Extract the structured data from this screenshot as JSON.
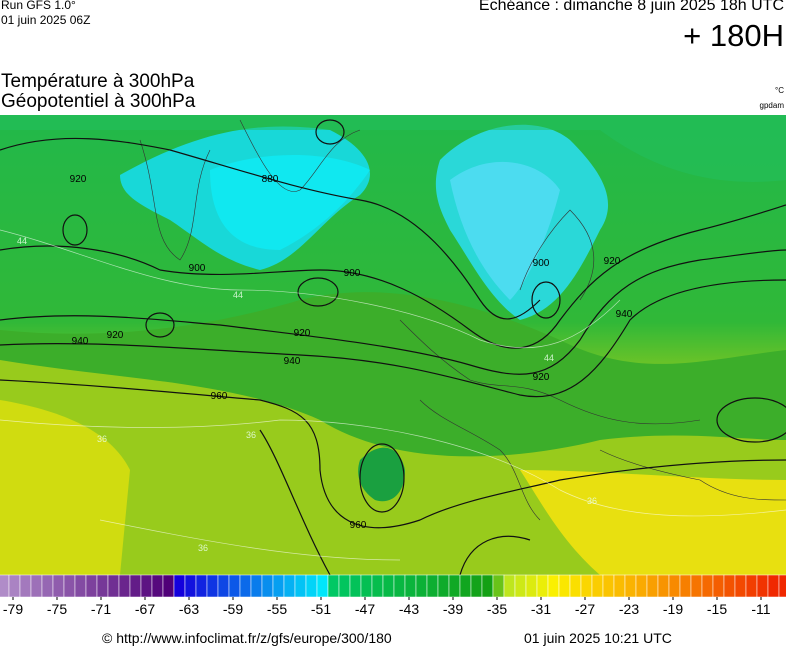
{
  "header": {
    "run": "Run GFS 1.0°",
    "run_date": "01 juin 2025 06Z",
    "echeance": "Echéance : dimanche 8 juin 2025 18h UTC",
    "lead": "+ 180H",
    "title_1": "Température à 300hPa",
    "title_2": "Géopotentiel à 300hPa",
    "unit_temp": "°C",
    "unit_geo": "gpdam"
  },
  "map": {
    "contour_labels": [
      920,
      880,
      900,
      900,
      900,
      920,
      920,
      940,
      940,
      960,
      960,
      920,
      940,
      920
    ],
    "temperature_labels": [
      44,
      44,
      44,
      36,
      36,
      36,
      36
    ]
  },
  "colorbar": {
    "ticks": [
      -79,
      -75,
      -71,
      -67,
      -63,
      -59,
      -55,
      -51,
      -47,
      -43,
      -39,
      -35,
      -31,
      -27,
      -23,
      -19,
      -15,
      -11
    ]
  },
  "footer": {
    "url": "© http://www.infoclimat.fr/z/gfs/europe/300/180",
    "generated": "01 juin 2025 10:21 UTC"
  }
}
